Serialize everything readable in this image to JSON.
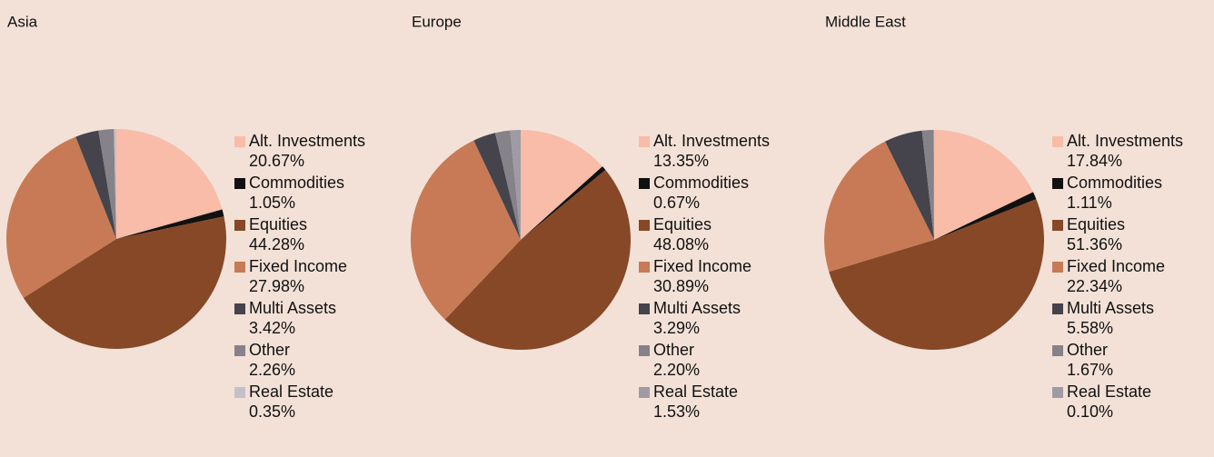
{
  "chart_data": [
    {
      "type": "pie",
      "title": "Asia",
      "categories": [
        "Alt. Investments",
        "Commodities",
        "Equities",
        "Fixed Income",
        "Multi Assets",
        "Other",
        "Real Estate"
      ],
      "values": [
        20.67,
        1.05,
        44.28,
        27.98,
        3.42,
        2.26,
        0.35
      ],
      "value_labels": [
        "20.67%",
        "1.05%",
        "44.28%",
        "27.98%",
        "3.42%",
        "2.26%",
        "0.35%"
      ],
      "colors": [
        "#f8bca8",
        "#111111",
        "#864826",
        "#c77a55",
        "#45434b",
        "#858289",
        "#c3c0c8"
      ]
    },
    {
      "type": "pie",
      "title": "Europe",
      "categories": [
        "Alt. Investments",
        "Commodities",
        "Equities",
        "Fixed Income",
        "Multi Assets",
        "Other",
        "Real Estate"
      ],
      "values": [
        13.35,
        0.67,
        48.08,
        30.89,
        3.29,
        2.2,
        1.53
      ],
      "value_labels": [
        "13.35%",
        "0.67%",
        "48.08%",
        "30.89%",
        "3.29%",
        "2.20%",
        "1.53%"
      ],
      "colors": [
        "#f8bca8",
        "#111111",
        "#864826",
        "#c77a55",
        "#45434b",
        "#858289",
        "#9e9ba4"
      ]
    },
    {
      "type": "pie",
      "title": "Middle East",
      "categories": [
        "Alt. Investments",
        "Commodities",
        "Equities",
        "Fixed Income",
        "Multi Assets",
        "Other",
        "Real Estate"
      ],
      "values": [
        17.84,
        1.11,
        51.36,
        22.34,
        5.58,
        1.67,
        0.1
      ],
      "value_labels": [
        "17.84%",
        "1.11%",
        "51.36%",
        "22.34%",
        "5.58%",
        "1.67%",
        "0.10%"
      ],
      "colors": [
        "#f8bca8",
        "#111111",
        "#864826",
        "#c77a55",
        "#45434b",
        "#858289",
        "#9e9ba4"
      ]
    }
  ]
}
